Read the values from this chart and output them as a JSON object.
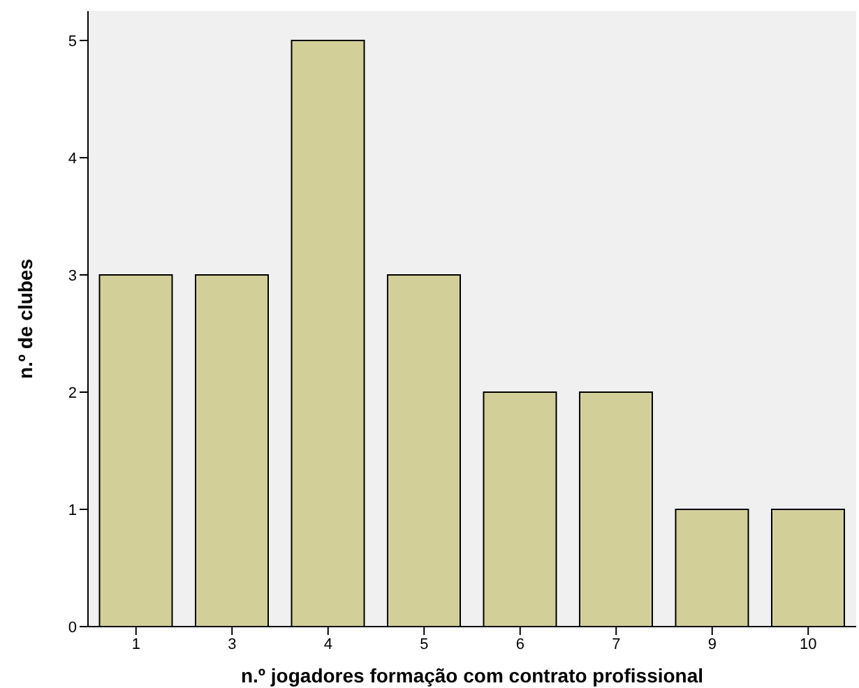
{
  "chart_data": {
    "type": "bar",
    "xlabel": "n.º jogadores formação com contrato profissional",
    "ylabel": "n.º de clubes",
    "categories": [
      "1",
      "3",
      "4",
      "5",
      "6",
      "7",
      "9",
      "10"
    ],
    "values": [
      3,
      3,
      5,
      3,
      2,
      2,
      1,
      1
    ],
    "color": "#d3cf98",
    "ylim": [
      0,
      5.25
    ],
    "yticks": [
      0,
      1,
      2,
      3,
      4,
      5
    ],
    "grid": false
  }
}
